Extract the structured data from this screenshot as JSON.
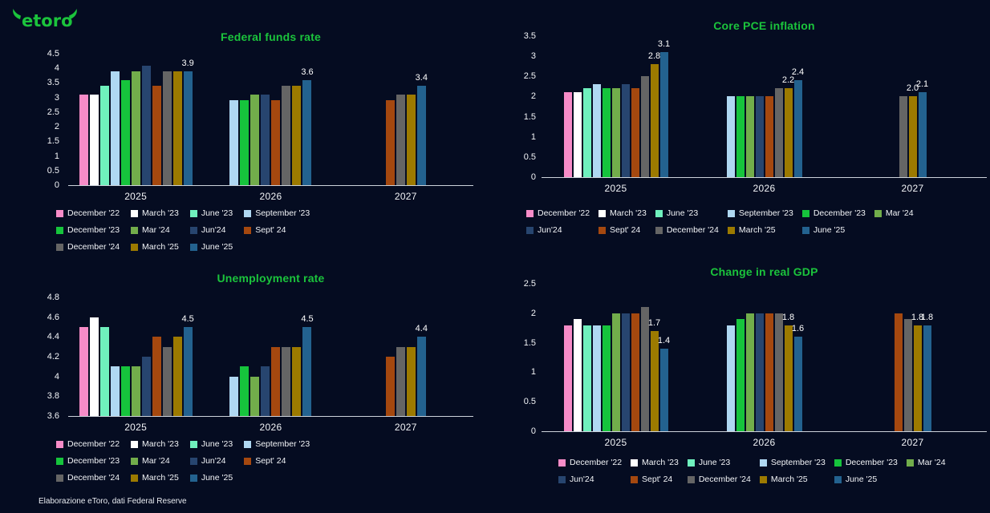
{
  "page": {
    "background_color": "#050c21",
    "accent_green": "#1bc43c",
    "text_color": "#ffffff",
    "axis_line_color": "#ccd2da"
  },
  "logo": {
    "text": "etoro"
  },
  "footer": {
    "source": "Elaborazione eToro, dati Federal Reserve"
  },
  "chart_data": [
    {
      "type": "bar",
      "title": "Federal funds rate",
      "categories": [
        "2025",
        "2026",
        "2027"
      ],
      "ylim": [
        0,
        4.5
      ],
      "ytick_values": [
        0,
        0.5,
        1,
        1.5,
        2,
        2.5,
        3,
        3.5,
        4,
        4.5
      ],
      "ytick_labels": [
        "0",
        "0.5",
        "1",
        "1.5",
        "2",
        "2.5",
        "3",
        "3.5",
        "4",
        "4.5"
      ],
      "grid": false,
      "legend_position": "bottom",
      "legend_columns": 4,
      "series": [
        {
          "name": "December '22",
          "color": "#f78cc8",
          "values": [
            3.1,
            null,
            null
          ]
        },
        {
          "name": "March '23",
          "color": "#ffffff",
          "values": [
            3.1,
            null,
            null
          ]
        },
        {
          "name": "June '23",
          "color": "#6ff0bd",
          "values": [
            3.4,
            null,
            null
          ]
        },
        {
          "name": "September '23",
          "color": "#afd8f2",
          "values": [
            3.9,
            2.9,
            null
          ]
        },
        {
          "name": "December '23",
          "color": "#16c43c",
          "values": [
            3.6,
            2.9,
            null
          ]
        },
        {
          "name": "Mar '24",
          "color": "#72ad4b",
          "values": [
            3.9,
            3.1,
            null
          ]
        },
        {
          "name": "Jun'24",
          "color": "#27456f",
          "values": [
            4.1,
            3.1,
            null
          ]
        },
        {
          "name": "Sept' 24",
          "color": "#a5480f",
          "values": [
            3.4,
            2.9,
            2.9
          ]
        },
        {
          "name": "December '24",
          "color": "#656565",
          "values": [
            3.9,
            3.4,
            3.1
          ]
        },
        {
          "name": "March '25",
          "color": "#9c7a00",
          "values": [
            3.9,
            3.4,
            3.1
          ]
        },
        {
          "name": "June '25",
          "color": "#23628f",
          "values": [
            3.9,
            3.6,
            3.4
          ],
          "labels": [
            "3.9",
            "3.6",
            "3.4"
          ]
        }
      ]
    },
    {
      "type": "bar",
      "title": "Core PCE inflation",
      "categories": [
        "2025",
        "2026",
        "2027"
      ],
      "ylim": [
        0,
        3.5
      ],
      "ytick_values": [
        0,
        0.5,
        1,
        1.5,
        2,
        2.5,
        3,
        3.5
      ],
      "ytick_labels": [
        "0",
        "0.5",
        "1",
        "1.5",
        "2",
        "2.5",
        "3",
        "3.5"
      ],
      "grid": false,
      "legend_position": "bottom",
      "legend_columns": 6,
      "series": [
        {
          "name": "December '22",
          "color": "#f78cc8",
          "values": [
            2.1,
            null,
            null
          ]
        },
        {
          "name": "March '23",
          "color": "#ffffff",
          "values": [
            2.1,
            null,
            null
          ]
        },
        {
          "name": "June '23",
          "color": "#6ff0bd",
          "values": [
            2.2,
            null,
            null
          ]
        },
        {
          "name": "September '23",
          "color": "#afd8f2",
          "values": [
            2.3,
            2.0,
            null
          ]
        },
        {
          "name": "December '23",
          "color": "#16c43c",
          "values": [
            2.2,
            2.0,
            null
          ]
        },
        {
          "name": "Mar '24",
          "color": "#72ad4b",
          "values": [
            2.2,
            2.0,
            null
          ]
        },
        {
          "name": "Jun'24",
          "color": "#27456f",
          "values": [
            2.3,
            2.0,
            null
          ]
        },
        {
          "name": "Sept' 24",
          "color": "#a5480f",
          "values": [
            2.2,
            2.0,
            null
          ]
        },
        {
          "name": "December '24",
          "color": "#656565",
          "values": [
            2.5,
            2.2,
            2.0
          ]
        },
        {
          "name": "March '25",
          "color": "#9c7a00",
          "values": [
            2.8,
            2.2,
            2.0
          ],
          "labels": [
            "2.8",
            "2.2",
            "2.0"
          ]
        },
        {
          "name": "June '25",
          "color": "#23628f",
          "values": [
            3.1,
            2.4,
            2.1
          ],
          "labels": [
            "3.1",
            "2.4",
            "2.1"
          ]
        }
      ]
    },
    {
      "type": "bar",
      "title": "Unemployment rate",
      "categories": [
        "2025",
        "2026",
        "2027"
      ],
      "ylim": [
        3.6,
        4.8
      ],
      "ytick_values": [
        3.6,
        3.8,
        4,
        4.2,
        4.4,
        4.6,
        4.8
      ],
      "ytick_labels": [
        "3.6",
        "3.8",
        "4",
        "4.2",
        "4.4",
        "4.6",
        "4.8"
      ],
      "grid": false,
      "legend_position": "bottom",
      "legend_columns": 4,
      "series": [
        {
          "name": "December '22",
          "color": "#f78cc8",
          "values": [
            4.5,
            null,
            null
          ]
        },
        {
          "name": "March '23",
          "color": "#ffffff",
          "values": [
            4.6,
            null,
            null
          ]
        },
        {
          "name": "June '23",
          "color": "#6ff0bd",
          "values": [
            4.5,
            null,
            null
          ]
        },
        {
          "name": "September '23",
          "color": "#afd8f2",
          "values": [
            4.1,
            4.0,
            null
          ]
        },
        {
          "name": "December '23",
          "color": "#16c43c",
          "values": [
            4.1,
            4.1,
            null
          ]
        },
        {
          "name": "Mar '24",
          "color": "#72ad4b",
          "values": [
            4.1,
            4.0,
            null
          ]
        },
        {
          "name": "Jun'24",
          "color": "#27456f",
          "values": [
            4.2,
            4.1,
            null
          ]
        },
        {
          "name": "Sept' 24",
          "color": "#a5480f",
          "values": [
            4.4,
            4.3,
            4.2
          ]
        },
        {
          "name": "December '24",
          "color": "#656565",
          "values": [
            4.3,
            4.3,
            4.3
          ]
        },
        {
          "name": "March '25",
          "color": "#9c7a00",
          "values": [
            4.4,
            4.3,
            4.3
          ]
        },
        {
          "name": "June '25",
          "color": "#23628f",
          "values": [
            4.5,
            4.5,
            4.4
          ],
          "labels": [
            "4.5",
            "4.5",
            "4.4"
          ]
        }
      ]
    },
    {
      "type": "bar",
      "title": "Change in real GDP",
      "categories": [
        "2025",
        "2026",
        "2027"
      ],
      "ylim": [
        0,
        2.5
      ],
      "ytick_values": [
        0,
        0.5,
        1,
        1.5,
        2,
        2.5
      ],
      "ytick_labels": [
        "0",
        "0.5",
        "1",
        "1.5",
        "2",
        "2.5"
      ],
      "grid": false,
      "legend_position": "bottom",
      "legend_columns": 6,
      "series": [
        {
          "name": "December '22",
          "color": "#f78cc8",
          "values": [
            1.8,
            null,
            null
          ]
        },
        {
          "name": "March '23",
          "color": "#ffffff",
          "values": [
            1.9,
            null,
            null
          ]
        },
        {
          "name": "June '23",
          "color": "#6ff0bd",
          "values": [
            1.8,
            null,
            null
          ]
        },
        {
          "name": "September '23",
          "color": "#afd8f2",
          "values": [
            1.8,
            1.8,
            null
          ]
        },
        {
          "name": "December '23",
          "color": "#16c43c",
          "values": [
            1.8,
            1.9,
            null
          ]
        },
        {
          "name": "Mar '24",
          "color": "#72ad4b",
          "values": [
            2.0,
            2.0,
            null
          ]
        },
        {
          "name": "Jun'24",
          "color": "#27456f",
          "values": [
            2.0,
            2.0,
            null
          ]
        },
        {
          "name": "Sept' 24",
          "color": "#a5480f",
          "values": [
            2.0,
            2.0,
            2.0
          ]
        },
        {
          "name": "December '24",
          "color": "#656565",
          "values": [
            2.1,
            2.0,
            1.9
          ]
        },
        {
          "name": "March '25",
          "color": "#9c7a00",
          "values": [
            1.7,
            1.8,
            1.8
          ],
          "labels": [
            "1.7",
            "1.8",
            "1.8"
          ]
        },
        {
          "name": "June '25",
          "color": "#23628f",
          "values": [
            1.4,
            1.6,
            1.8
          ],
          "labels": [
            "1.4",
            "1.6",
            "1.8"
          ]
        }
      ]
    }
  ]
}
